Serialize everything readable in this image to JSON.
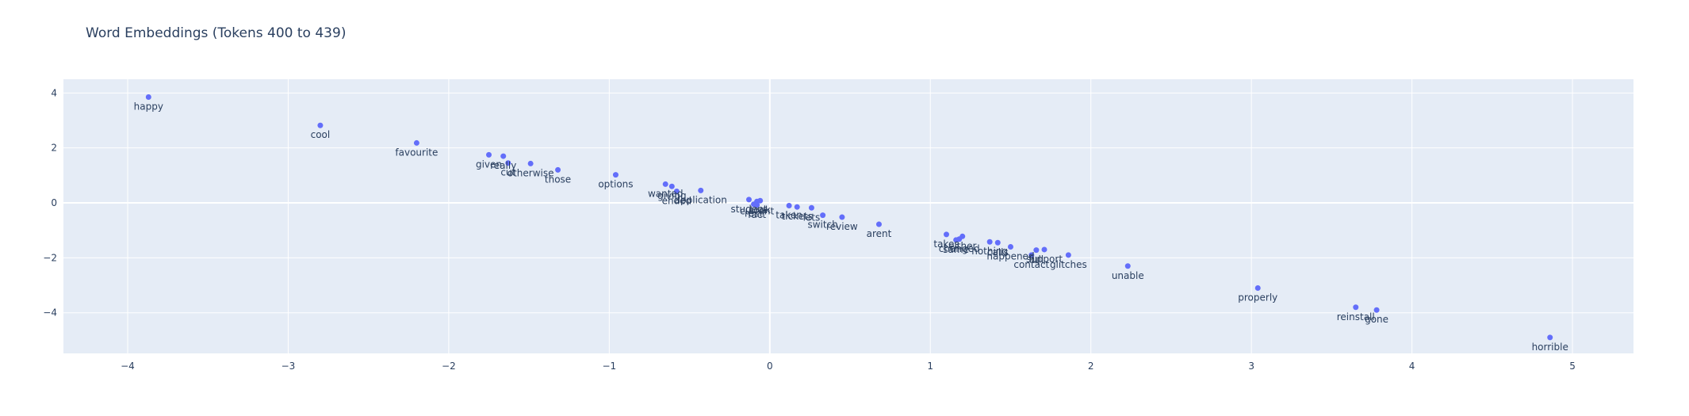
{
  "chart_data": {
    "type": "scatter",
    "title": "Word Embeddings (Tokens 400 to 439)",
    "xlabel": "",
    "ylabel": "",
    "xlim": [
      -4.4,
      5.38
    ],
    "ylim": [
      -5.48,
      4.5
    ],
    "x_ticks": [
      -4,
      -3,
      -2,
      -1,
      0,
      1,
      2,
      3,
      4,
      5
    ],
    "y_ticks": [
      -4,
      -2,
      0,
      2,
      4
    ],
    "grid": true,
    "legend": "none",
    "colors": {
      "plot_bg": "#e5ecf6",
      "grid": "#ffffff",
      "marker": "#636efa",
      "text": "#2a3f5f"
    },
    "points": [
      {
        "label": "happy",
        "x": -3.87,
        "y": 3.85
      },
      {
        "label": "cool",
        "x": -2.8,
        "y": 2.82
      },
      {
        "label": "favourite",
        "x": -2.2,
        "y": 2.18
      },
      {
        "label": "given",
        "x": -1.75,
        "y": 1.75
      },
      {
        "label": "really",
        "x": -1.66,
        "y": 1.7
      },
      {
        "label": "cut",
        "x": -1.63,
        "y": 1.45
      },
      {
        "label": "otherwise",
        "x": -1.49,
        "y": 1.43
      },
      {
        "label": "those",
        "x": -1.32,
        "y": 1.2
      },
      {
        "label": "options",
        "x": -0.96,
        "y": 1.02
      },
      {
        "label": "wanted",
        "x": -0.65,
        "y": 0.68
      },
      {
        "label": "giving",
        "x": -0.61,
        "y": 0.6
      },
      {
        "label": "ended",
        "x": -0.58,
        "y": 0.42
      },
      {
        "label": "application",
        "x": -0.43,
        "y": 0.45
      },
      {
        "label": "student",
        "x": -0.13,
        "y": 0.12
      },
      {
        "label": "current",
        "x": -0.08,
        "y": 0.05
      },
      {
        "label": "rest",
        "x": -0.1,
        "y": -0.05
      },
      {
        "label": "fact",
        "x": -0.08,
        "y": -0.08
      },
      {
        "label": "took",
        "x": -0.06,
        "y": 0.08
      },
      {
        "label": "taken",
        "x": 0.12,
        "y": -0.1
      },
      {
        "label": "tickets",
        "x": 0.17,
        "y": -0.15
      },
      {
        "label": "lets",
        "x": 0.26,
        "y": -0.18
      },
      {
        "label": "switch",
        "x": 0.33,
        "y": -0.45
      },
      {
        "label": "review",
        "x": 0.45,
        "y": -0.52
      },
      {
        "label": "arent",
        "x": 0.68,
        "y": -0.78
      },
      {
        "label": "takes",
        "x": 1.1,
        "y": -1.15
      },
      {
        "label": "same",
        "x": 1.16,
        "y": -1.35
      },
      {
        "label": "either",
        "x": 1.2,
        "y": -1.22
      },
      {
        "label": "changed",
        "x": 1.18,
        "y": -1.32
      },
      {
        "label": "nothing",
        "x": 1.37,
        "y": -1.42
      },
      {
        "label": "calls",
        "x": 1.42,
        "y": -1.45
      },
      {
        "label": "happened",
        "x": 1.5,
        "y": -1.6
      },
      {
        "label": "contact",
        "x": 1.63,
        "y": -1.9
      },
      {
        "label": "full",
        "x": 1.66,
        "y": -1.72
      },
      {
        "label": "support",
        "x": 1.71,
        "y": -1.7
      },
      {
        "label": "glitches",
        "x": 1.86,
        "y": -1.9
      },
      {
        "label": "unable",
        "x": 2.23,
        "y": -2.3
      },
      {
        "label": "properly",
        "x": 3.04,
        "y": -3.1
      },
      {
        "label": "reinstall",
        "x": 3.65,
        "y": -3.8
      },
      {
        "label": "gone",
        "x": 3.78,
        "y": -3.9
      },
      {
        "label": "horrible",
        "x": 4.86,
        "y": -4.9
      }
    ]
  }
}
